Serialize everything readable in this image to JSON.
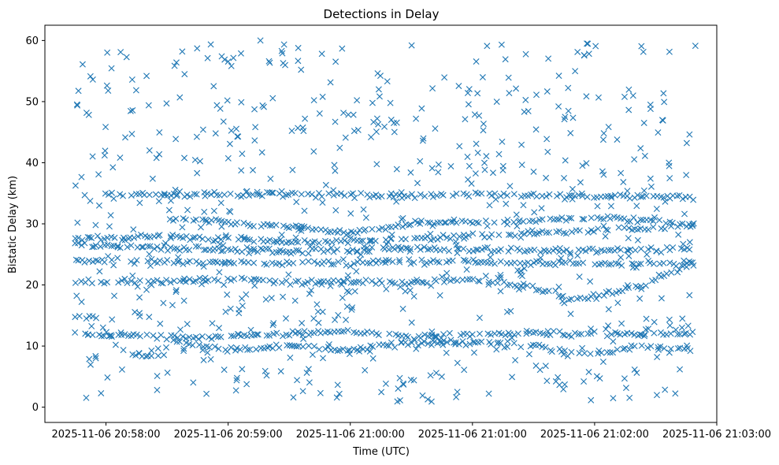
{
  "chart_data": {
    "type": "scatter",
    "title": "Detections in Delay",
    "xlabel": "Time (UTC)",
    "ylabel": "Bistatic Delay (km)",
    "marker": "x",
    "marker_color": "#1f77b4",
    "x_unit": "time",
    "xlim": [
      "2025-11-06 20:57:30",
      "2025-11-06 21:03:00"
    ],
    "ylim": [
      -2.5,
      62.5
    ],
    "x_ticks": [
      "2025-11-06 20:58:00",
      "2025-11-06 20:59:00",
      "2025-11-06 21:00:00",
      "2025-11-06 21:01:00",
      "2025-11-06 21:02:00",
      "2025-11-06 21:03:00"
    ],
    "y_ticks": [
      0,
      10,
      20,
      30,
      40,
      50,
      60
    ],
    "x_range_of_data": [
      "2025-11-06 20:57:45",
      "2025-11-06 21:02:50"
    ],
    "tracks": [
      {
        "name": "",
        "points": [
          [
            "20:57:45",
            26.5
          ],
          [
            "20:58:30",
            26.0
          ],
          [
            "20:59:30",
            25.5
          ],
          [
            "21:00:30",
            26.0
          ],
          [
            "21:01:30",
            25.5
          ],
          [
            "21:02:50",
            26.0
          ]
        ]
      },
      {
        "name": "",
        "points": [
          [
            "20:57:45",
            24.0
          ],
          [
            "20:58:30",
            23.8
          ],
          [
            "20:59:30",
            23.5
          ],
          [
            "21:00:30",
            24.0
          ],
          [
            "21:01:30",
            23.5
          ],
          [
            "21:02:50",
            23.5
          ]
        ]
      },
      {
        "name": "",
        "points": [
          [
            "20:57:45",
            27.5
          ],
          [
            "20:58:30",
            28.0
          ],
          [
            "20:59:30",
            27.0
          ],
          [
            "21:00:30",
            27.5
          ],
          [
            "21:01:30",
            28.5
          ],
          [
            "21:02:50",
            29.5
          ]
        ]
      },
      {
        "name": "",
        "points": [
          [
            "20:58:30",
            30.8
          ],
          [
            "20:59:30",
            29.5
          ],
          [
            "21:00:00",
            28.5
          ],
          [
            "21:00:30",
            30.0
          ],
          [
            "21:01:30",
            30.5
          ],
          [
            "21:02:00",
            31.0
          ],
          [
            "21:02:50",
            30.0
          ]
        ]
      },
      {
        "name": "",
        "points": [
          [
            "20:58:00",
            34.8
          ],
          [
            "20:59:30",
            34.8
          ],
          [
            "21:00:00",
            34.8
          ],
          [
            "21:00:30",
            34.5
          ],
          [
            "21:01:00",
            34.8
          ],
          [
            "21:02:00",
            34.5
          ],
          [
            "21:02:50",
            34.5
          ]
        ]
      },
      {
        "name": "",
        "points": [
          [
            "20:57:45",
            20.5
          ],
          [
            "20:58:30",
            20.5
          ],
          [
            "20:59:00",
            21.0
          ],
          [
            "20:59:30",
            20.5
          ],
          [
            "21:00:00",
            20.5
          ],
          [
            "21:00:30",
            20.5
          ],
          [
            "21:01:00",
            21.0
          ],
          [
            "21:01:30",
            19.5
          ],
          [
            "21:01:50",
            17.5
          ],
          [
            "21:02:20",
            19.5
          ],
          [
            "21:02:50",
            23.5
          ]
        ]
      },
      {
        "name": "",
        "points": [
          [
            "20:57:45",
            12.0
          ],
          [
            "20:58:30",
            11.5
          ],
          [
            "20:59:00",
            11.5
          ],
          [
            "20:59:30",
            12.0
          ],
          [
            "21:00:00",
            12.5
          ],
          [
            "21:00:30",
            11.5
          ],
          [
            "21:01:00",
            12.0
          ],
          [
            "21:01:30",
            12.0
          ],
          [
            "21:02:00",
            12.0
          ],
          [
            "21:02:50",
            12.0
          ]
        ]
      },
      {
        "name": "",
        "points": [
          [
            "20:58:30",
            11.0
          ],
          [
            "20:59:00",
            9.5
          ],
          [
            "20:59:30",
            10.0
          ],
          [
            "21:00:00",
            9.5
          ],
          [
            "21:00:30",
            10.5
          ],
          [
            "21:01:00",
            10.5
          ],
          [
            "21:01:30",
            10.0
          ],
          [
            "21:02:00",
            8.5
          ],
          [
            "21:02:20",
            10.0
          ],
          [
            "21:02:50",
            9.5
          ]
        ]
      },
      {
        "name": "",
        "points": [
          [
            "20:57:45",
            14.8
          ],
          [
            "20:57:55",
            14.5
          ],
          [
            "20:58:10",
            8.5
          ],
          [
            "20:58:30",
            8.5
          ]
        ]
      }
    ],
    "noise_points_estimate": 700,
    "noise_y_range": [
      0.5,
      60.0
    ]
  }
}
